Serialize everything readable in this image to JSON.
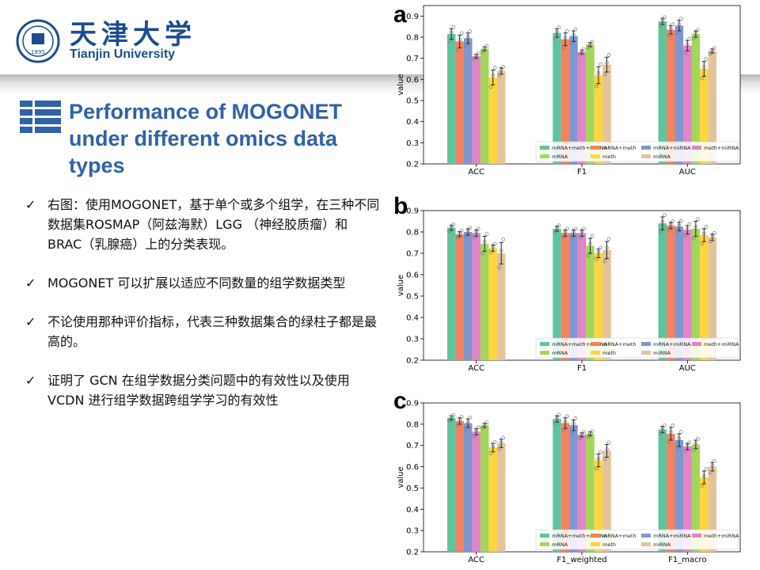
{
  "header": {
    "logo_cn": "天津大学",
    "logo_en": "Tianjin University",
    "seal_text": "1895"
  },
  "title": "Performance of MOGONET under different omics data types",
  "bullets": [
    {
      "check": "✓",
      "text": "右图：使用MOGONET，基于单个或多个组学，在三种不同数据集ROSMAP（阿兹海默）LGG （神经胶质瘤）和 BRAC（乳腺癌）上的分类表现。"
    },
    {
      "check": "✓",
      "text": "MOGONET 可以扩展以适应不同数量的组学数据类型"
    },
    {
      "check": "✓",
      "text": "不论使用那种评价指标，代表三种数据集合的绿柱子都是最高的。"
    },
    {
      "check": "✓",
      "text": "证明了 GCN 在组学数据分类问题中的有效性以及使用 VCDN 进行组学数据跨组学学习的有效性"
    }
  ],
  "colors": [
    "#5ec49b",
    "#f4825f",
    "#7f96cf",
    "#e284c8",
    "#a4d65a",
    "#fcd53e",
    "#e3c39a"
  ],
  "chart_data": [
    {
      "panel": "a",
      "type": "bar",
      "ylabel": "value",
      "ylim": [
        0.2,
        0.95
      ],
      "yticks": [
        "0.2",
        "0.3",
        "0.4",
        "0.5",
        "0.6",
        "0.7",
        "0.8",
        "0.9"
      ],
      "categories": [
        "ACC",
        "F1",
        "AUC"
      ],
      "legend": "bottom-right",
      "series": [
        {
          "name": "mRNA+meth+miRNA",
          "values": [
            0.815,
            0.82,
            0.875
          ],
          "err": [
            0.025,
            0.02,
            0.015
          ]
        },
        {
          "name": "mRNA+meth",
          "values": [
            0.78,
            0.79,
            0.835
          ],
          "err": [
            0.03,
            0.03,
            0.02
          ]
        },
        {
          "name": "mRNA+miRNA",
          "values": [
            0.795,
            0.805,
            0.855
          ],
          "err": [
            0.025,
            0.025,
            0.025
          ]
        },
        {
          "name": "meth+miRNA",
          "values": [
            0.71,
            0.73,
            0.76
          ],
          "err": [
            0.01,
            0.01,
            0.025
          ]
        },
        {
          "name": "mRNA",
          "values": [
            0.745,
            0.765,
            0.815
          ],
          "err": [
            0.01,
            0.01,
            0.015
          ]
        },
        {
          "name": "meth",
          "values": [
            0.61,
            0.62,
            0.65
          ],
          "err": [
            0.035,
            0.04,
            0.035
          ]
        },
        {
          "name": "miRNA",
          "values": [
            0.64,
            0.67,
            0.735
          ],
          "err": [
            0.015,
            0.035,
            0.01
          ]
        }
      ]
    },
    {
      "panel": "b",
      "type": "bar",
      "ylabel": "value",
      "ylim": [
        0.2,
        0.9
      ],
      "yticks": [
        "0.2",
        "0.3",
        "0.4",
        "0.5",
        "0.6",
        "0.7",
        "0.8",
        "0.9"
      ],
      "categories": [
        "ACC",
        "F1",
        "AUC"
      ],
      "legend": "bottom-right",
      "series": [
        {
          "name": "mRNA+meth+miRNA",
          "values": [
            0.82,
            0.815,
            0.84
          ],
          "err": [
            0.012,
            0.012,
            0.03
          ]
        },
        {
          "name": "mRNA+meth",
          "values": [
            0.79,
            0.795,
            0.83
          ],
          "err": [
            0.012,
            0.015,
            0.015
          ]
        },
        {
          "name": "mRNA+miRNA",
          "values": [
            0.8,
            0.795,
            0.825
          ],
          "err": [
            0.015,
            0.015,
            0.02
          ]
        },
        {
          "name": "meth+miRNA",
          "values": [
            0.795,
            0.795,
            0.81
          ],
          "err": [
            0.015,
            0.015,
            0.02
          ]
        },
        {
          "name": "mRNA",
          "values": [
            0.745,
            0.735,
            0.815
          ],
          "err": [
            0.035,
            0.035,
            0.035
          ]
        },
        {
          "name": "meth",
          "values": [
            0.725,
            0.7,
            0.785
          ],
          "err": [
            0.015,
            0.02,
            0.03
          ]
        },
        {
          "name": "miRNA",
          "values": [
            0.7,
            0.715,
            0.775
          ],
          "err": [
            0.05,
            0.04,
            0.015
          ]
        }
      ]
    },
    {
      "panel": "c",
      "type": "bar",
      "ylabel": "value",
      "ylim": [
        0.2,
        0.9
      ],
      "yticks": [
        "0.2",
        "0.3",
        "0.4",
        "0.5",
        "0.6",
        "0.7",
        "0.8",
        "0.9"
      ],
      "categories": [
        "ACC",
        "F1_weighted",
        "F1_macro"
      ],
      "legend": "bottom-right",
      "series": [
        {
          "name": "mRNA+meth+miRNA",
          "values": [
            0.83,
            0.825,
            0.775
          ],
          "err": [
            0.01,
            0.015,
            0.015
          ]
        },
        {
          "name": "mRNA+meth",
          "values": [
            0.815,
            0.805,
            0.755
          ],
          "err": [
            0.015,
            0.025,
            0.03
          ]
        },
        {
          "name": "mRNA+miRNA",
          "values": [
            0.805,
            0.795,
            0.725
          ],
          "err": [
            0.02,
            0.025,
            0.03
          ]
        },
        {
          "name": "meth+miRNA",
          "values": [
            0.765,
            0.75,
            0.695
          ],
          "err": [
            0.015,
            0.01,
            0.015
          ]
        },
        {
          "name": "mRNA",
          "values": [
            0.795,
            0.755,
            0.705
          ],
          "err": [
            0.01,
            0.01,
            0.02
          ]
        },
        {
          "name": "meth",
          "values": [
            0.69,
            0.63,
            0.55
          ],
          "err": [
            0.02,
            0.03,
            0.03
          ]
        },
        {
          "name": "miRNA",
          "values": [
            0.71,
            0.675,
            0.6
          ],
          "err": [
            0.02,
            0.03,
            0.02
          ]
        }
      ]
    }
  ]
}
